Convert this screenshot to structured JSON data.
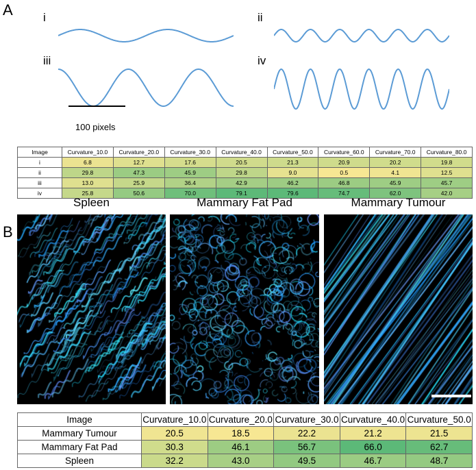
{
  "panel_a": {
    "letter": "A",
    "waves": [
      {
        "label": "i",
        "periods": 2,
        "amplitude": "low"
      },
      {
        "label": "ii",
        "periods": 6,
        "amplitude": "low"
      },
      {
        "label": "iii",
        "periods": 2.5,
        "amplitude": "high"
      },
      {
        "label": "iv",
        "periods": 6,
        "amplitude": "high"
      }
    ],
    "scale_bar_label": "100 pixels",
    "wave_color": "#5b9bd5",
    "table": {
      "headers": [
        "Image",
        "Curvature_10.0",
        "Curvature_20.0",
        "Curvature_30.0",
        "Curvature_40.0",
        "Curvature_50.0",
        "Curvature_60.0",
        "Curvature_70.0",
        "Curvature_80.0"
      ],
      "rows": [
        {
          "name": "i",
          "values": [
            "6.8",
            "12.7",
            "17.6",
            "20.5",
            "21.3",
            "20.9",
            "20.2",
            "19.8"
          ]
        },
        {
          "name": "ii",
          "values": [
            "29.8",
            "47.3",
            "45.9",
            "29.8",
            "9.0",
            "0.5",
            "4.1",
            "12.5"
          ]
        },
        {
          "name": "iii",
          "values": [
            "13.0",
            "25.9",
            "36.4",
            "42.9",
            "46.2",
            "46.8",
            "45.9",
            "45.7"
          ]
        },
        {
          "name": "iv",
          "values": [
            "25.8",
            "50.6",
            "70.0",
            "79.1",
            "79.6",
            "74.7",
            "62.0",
            "42.0"
          ]
        }
      ]
    }
  },
  "panel_b": {
    "letter": "B",
    "images": [
      {
        "title": "Spleen",
        "style": "wavy-bands"
      },
      {
        "title": "Mammary Fat Pad",
        "style": "curly"
      },
      {
        "title": "Mammary Tumour",
        "style": "straight-fibres"
      }
    ],
    "table": {
      "headers": [
        "Image",
        "Curvature_10.0",
        "Curvature_20.0",
        "Curvature_30.0",
        "Curvature_40.0",
        "Curvature_50.0"
      ],
      "rows": [
        {
          "name": "Mammary Tumour",
          "values": [
            "20.5",
            "18.5",
            "22.2",
            "21.2",
            "21.5"
          ]
        },
        {
          "name": "Mammary Fat Pad",
          "values": [
            "30.3",
            "46.1",
            "56.7",
            "66.0",
            "62.7"
          ]
        },
        {
          "name": "Spleen",
          "values": [
            "32.2",
            "43.0",
            "49.5",
            "46.7",
            "48.7"
          ]
        }
      ]
    }
  },
  "colors": {
    "low": "#f7e793",
    "high": "#5cb978",
    "fibre": "#3aa0ff"
  }
}
